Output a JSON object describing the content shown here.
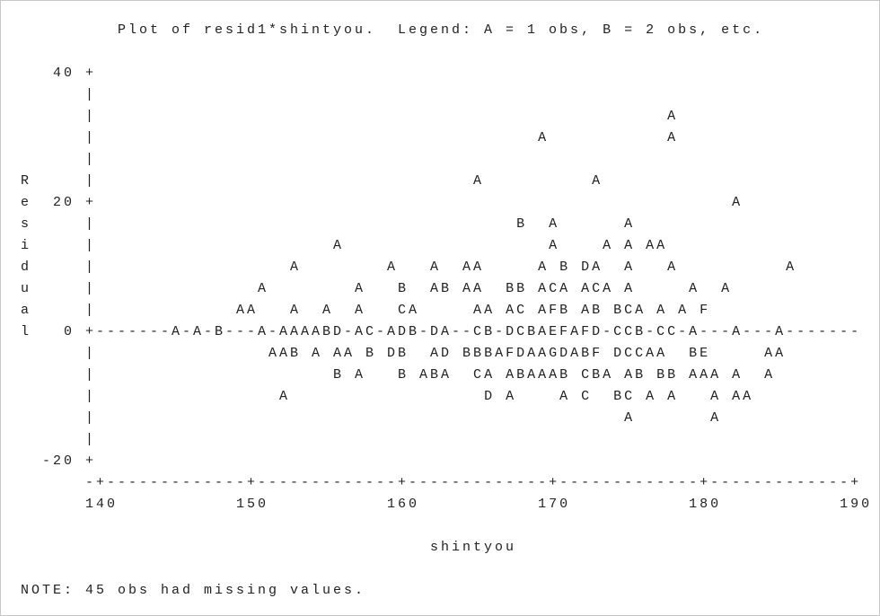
{
  "title": "Plot of resid1*shintyou.  Legend: A = 1 obs, B = 2 obs, etc.",
  "plot_lines": [
    "   40 +",
    "      |",
    "      |                                                     A",
    "      |                                         A           A",
    "      |",
    "R     |                                   A          A",
    "e  20 +                                                           A",
    "s     |                                       B  A      A",
    "i     |                      A                   A    A A AA",
    "d     |                  A        A   A  AA     A B DA  A   A          A",
    "u     |               A        A   B  AB AA  BB ACA ACA A     A  A",
    "a     |             AA   A  A  A   CA     AA AC AFB AB BCA A A F",
    "l   0 +-------A-A-B---A-AAAABD-AC-ADB-DA--CB-DCBAEFAFD-CCB-CC-A---A---A-------",
    "      |                AAB A AA B DB  AD BBBAFDAAGDABF DCCAA  BE     AA",
    "      |                      B A   B ABA  CA ABAAAB CBA AB BB AAA A  A",
    "      |                 A                  D A    A C  BC A A   A AA",
    "      |                                                 A       A",
    "      |",
    "  -20 +",
    "      -+-------------+-------------+-------------+-------------+-------------+",
    "      140           150           160           170           180           190"
  ],
  "x_label": "shintyou",
  "note": "NOTE: 45 obs had missing values."
}
